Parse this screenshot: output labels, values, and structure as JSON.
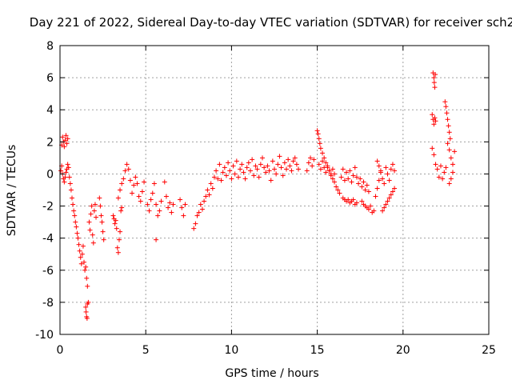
{
  "chart_data": {
    "type": "scatter",
    "title": "Day 221 of 2022, Sidereal Day-to-day VTEC variation (SDTVAR) for receiver sch2",
    "xlabel": "GPS time / hours",
    "ylabel": "SDTVAR / TECUs",
    "xlim": [
      0,
      25
    ],
    "ylim": [
      -10,
      8
    ],
    "xticks": [
      0,
      5,
      10,
      15,
      20,
      25
    ],
    "yticks": [
      -10,
      -8,
      -6,
      -4,
      -2,
      0,
      2,
      4,
      6,
      8
    ],
    "grid": true,
    "marker": "+",
    "color": "#ff0000",
    "series": [
      {
        "name": "sch2",
        "x": [
          0.05,
          0.1,
          0.15,
          0.2,
          0.25,
          0.3,
          0.35,
          0.4,
          0.45,
          0.5,
          0.1,
          0.15,
          0.2,
          0.25,
          0.3,
          0.35,
          0.4,
          0.45,
          0.55,
          0.6,
          0.65,
          0.7,
          0.75,
          0.8,
          0.85,
          0.9,
          0.95,
          1.0,
          1.05,
          1.1,
          1.15,
          1.2,
          1.25,
          1.3,
          1.35,
          1.4,
          1.45,
          1.5,
          1.55,
          1.6,
          1.65,
          1.5,
          1.52,
          1.55,
          1.58,
          1.6,
          1.7,
          1.75,
          1.8,
          1.85,
          1.9,
          1.95,
          2.0,
          2.05,
          2.1,
          2.3,
          2.35,
          2.4,
          2.45,
          2.5,
          2.55,
          3.1,
          3.15,
          3.2,
          3.25,
          3.3,
          3.35,
          3.4,
          3.45,
          3.5,
          3.55,
          3.6,
          3.4,
          3.5,
          3.6,
          3.7,
          3.8,
          3.9,
          4.0,
          4.1,
          4.2,
          4.3,
          4.4,
          4.5,
          4.6,
          4.7,
          4.8,
          4.9,
          5.1,
          5.2,
          5.3,
          5.4,
          5.5,
          5.6,
          5.7,
          5.8,
          5.9,
          5.6,
          6.1,
          6.2,
          6.3,
          6.4,
          6.5,
          6.6,
          7.0,
          7.1,
          7.2,
          7.3,
          7.8,
          7.9,
          8.0,
          8.1,
          8.2,
          8.3,
          8.4,
          8.5,
          8.6,
          8.7,
          8.8,
          8.9,
          9.0,
          9.1,
          9.2,
          9.3,
          9.4,
          9.5,
          9.6,
          9.7,
          9.8,
          9.9,
          10.0,
          10.1,
          10.2,
          10.3,
          10.4,
          10.5,
          10.6,
          10.7,
          10.8,
          10.9,
          11.0,
          11.1,
          11.2,
          11.3,
          11.4,
          11.5,
          11.6,
          11.7,
          11.8,
          11.9,
          12.0,
          12.1,
          12.2,
          12.3,
          12.4,
          12.5,
          12.6,
          12.7,
          12.8,
          12.9,
          13.0,
          13.1,
          13.2,
          13.3,
          13.4,
          13.5,
          13.6,
          13.7,
          13.8,
          13.9,
          14.4,
          14.5,
          14.6,
          14.7,
          14.8,
          15.0,
          15.05,
          15.1,
          15.15,
          15.2,
          15.3,
          15.4,
          15.5,
          15.6,
          15.7,
          15.8,
          15.9,
          16.0,
          16.1,
          16.2,
          16.3,
          15.1,
          15.2,
          15.3,
          15.4,
          15.5,
          15.6,
          15.7,
          15.8,
          15.9,
          16.0,
          16.4,
          16.5,
          16.6,
          16.7,
          16.8,
          16.9,
          17.0,
          17.1,
          17.2,
          17.3,
          17.4,
          17.5,
          17.6,
          17.7,
          17.8,
          17.9,
          18.0,
          16.5,
          16.6,
          16.7,
          16.8,
          16.9,
          17.0,
          17.1,
          17.2,
          17.3,
          17.6,
          17.7,
          17.8,
          17.9,
          18.0,
          18.1,
          18.2,
          18.3,
          18.4,
          18.5,
          18.6,
          18.7,
          18.5,
          18.6,
          18.7,
          18.8,
          18.9,
          19.0,
          19.1,
          19.2,
          19.3,
          19.4,
          19.5,
          18.8,
          18.9,
          19.0,
          19.1,
          19.2,
          19.3,
          19.4,
          19.5,
          21.75,
          21.8,
          21.82,
          21.85,
          21.88,
          21.7,
          21.75,
          21.8,
          21.85,
          21.9,
          21.7,
          21.8,
          21.9,
          22.0,
          22.1,
          22.2,
          22.3,
          22.4,
          22.5,
          22.45,
          22.5,
          22.55,
          22.6,
          22.65,
          22.7,
          22.75,
          22.6,
          22.7,
          22.8,
          22.9,
          23.0,
          22.7,
          22.8,
          22.9
        ],
        "y": [
          0.2,
          0.5,
          0.0,
          -0.3,
          -0.5,
          -0.2,
          0.1,
          0.3,
          0.6,
          0.4,
          1.8,
          2.3,
          2.0,
          1.7,
          2.1,
          2.4,
          1.9,
          2.2,
          -0.2,
          -0.6,
          -1.0,
          -1.5,
          -1.9,
          -2.3,
          -2.6,
          -3.0,
          -3.3,
          -3.7,
          -4.0,
          -4.4,
          -4.8,
          -5.2,
          -5.6,
          -5.0,
          -4.5,
          -5.5,
          -6.0,
          -5.8,
          -6.5,
          -7.0,
          -8.0,
          -8.3,
          -8.6,
          -8.9,
          -9.0,
          -8.1,
          -3.0,
          -3.5,
          -2.5,
          -2.0,
          -3.8,
          -4.3,
          -2.3,
          -1.9,
          -2.7,
          -1.5,
          -2.0,
          -2.6,
          -3.0,
          -3.6,
          -4.1,
          -2.6,
          -2.8,
          -3.1,
          -2.9,
          -3.4,
          -4.6,
          -4.9,
          -4.1,
          -3.6,
          -2.3,
          -2.1,
          -1.5,
          -1.0,
          -0.6,
          -0.3,
          0.2,
          0.6,
          0.3,
          -0.4,
          -1.2,
          -0.7,
          -0.2,
          -0.6,
          -1.4,
          -1.7,
          -1.1,
          -0.5,
          -1.9,
          -2.3,
          -1.6,
          -1.2,
          -0.6,
          -1.9,
          -2.6,
          -2.3,
          -1.7,
          -4.1,
          -0.5,
          -1.4,
          -2.1,
          -1.8,
          -2.4,
          -1.9,
          -1.6,
          -2.1,
          -2.6,
          -1.9,
          -3.4,
          -3.1,
          -2.6,
          -2.4,
          -1.9,
          -2.2,
          -1.7,
          -1.4,
          -1.0,
          -1.3,
          -0.6,
          -0.9,
          -0.2,
          0.2,
          -0.3,
          0.6,
          -0.4,
          0.1,
          0.4,
          -0.1,
          0.7,
          0.2,
          -0.3,
          0.5,
          0.0,
          0.8,
          -0.2,
          0.3,
          0.6,
          0.1,
          -0.3,
          0.4,
          0.7,
          0.2,
          0.9,
          -0.1,
          0.5,
          0.3,
          -0.2,
          0.6,
          1.0,
          0.4,
          0.1,
          0.5,
          0.2,
          -0.4,
          0.8,
          0.3,
          0.0,
          0.6,
          1.1,
          0.4,
          -0.1,
          0.7,
          0.3,
          0.9,
          0.5,
          0.2,
          0.8,
          1.0,
          0.6,
          0.3,
          0.2,
          0.7,
          1.0,
          0.5,
          0.9,
          2.7,
          2.5,
          2.2,
          1.9,
          1.6,
          1.3,
          1.0,
          0.7,
          0.4,
          0.2,
          0.0,
          -0.3,
          -0.5,
          -0.8,
          -1.0,
          -1.2,
          0.6,
          0.3,
          0.8,
          0.4,
          0.1,
          0.5,
          0.2,
          -0.1,
          0.3,
          0.0,
          -0.2,
          0.3,
          -0.4,
          0.1,
          -0.3,
          0.2,
          -0.5,
          -0.1,
          0.4,
          -0.2,
          -0.6,
          -0.3,
          -0.8,
          -0.5,
          -1.0,
          -0.7,
          -1.1,
          -1.5,
          -1.6,
          -1.7,
          -1.6,
          -1.8,
          -1.7,
          -1.6,
          -1.9,
          -1.8,
          -1.7,
          -1.9,
          -2.0,
          -2.1,
          -2.2,
          -2.0,
          -2.4,
          -2.3,
          -1.4,
          -0.9,
          -0.4,
          0.2,
          0.8,
          0.5,
          0.1,
          -0.3,
          -0.6,
          0.4,
          0.0,
          -0.4,
          0.3,
          0.6,
          0.2,
          -2.3,
          -2.1,
          -1.9,
          -1.7,
          -1.5,
          -1.3,
          -1.1,
          -0.9,
          6.3,
          6.0,
          5.7,
          5.4,
          6.2,
          3.7,
          3.4,
          3.1,
          3.5,
          3.3,
          1.6,
          1.2,
          0.6,
          0.3,
          -0.2,
          0.5,
          -0.3,
          0.1,
          0.4,
          4.5,
          4.2,
          3.8,
          3.4,
          3.0,
          2.6,
          2.2,
          1.9,
          1.5,
          1.0,
          0.6,
          1.4,
          -0.6,
          -0.3,
          0.1
        ]
      }
    ]
  }
}
